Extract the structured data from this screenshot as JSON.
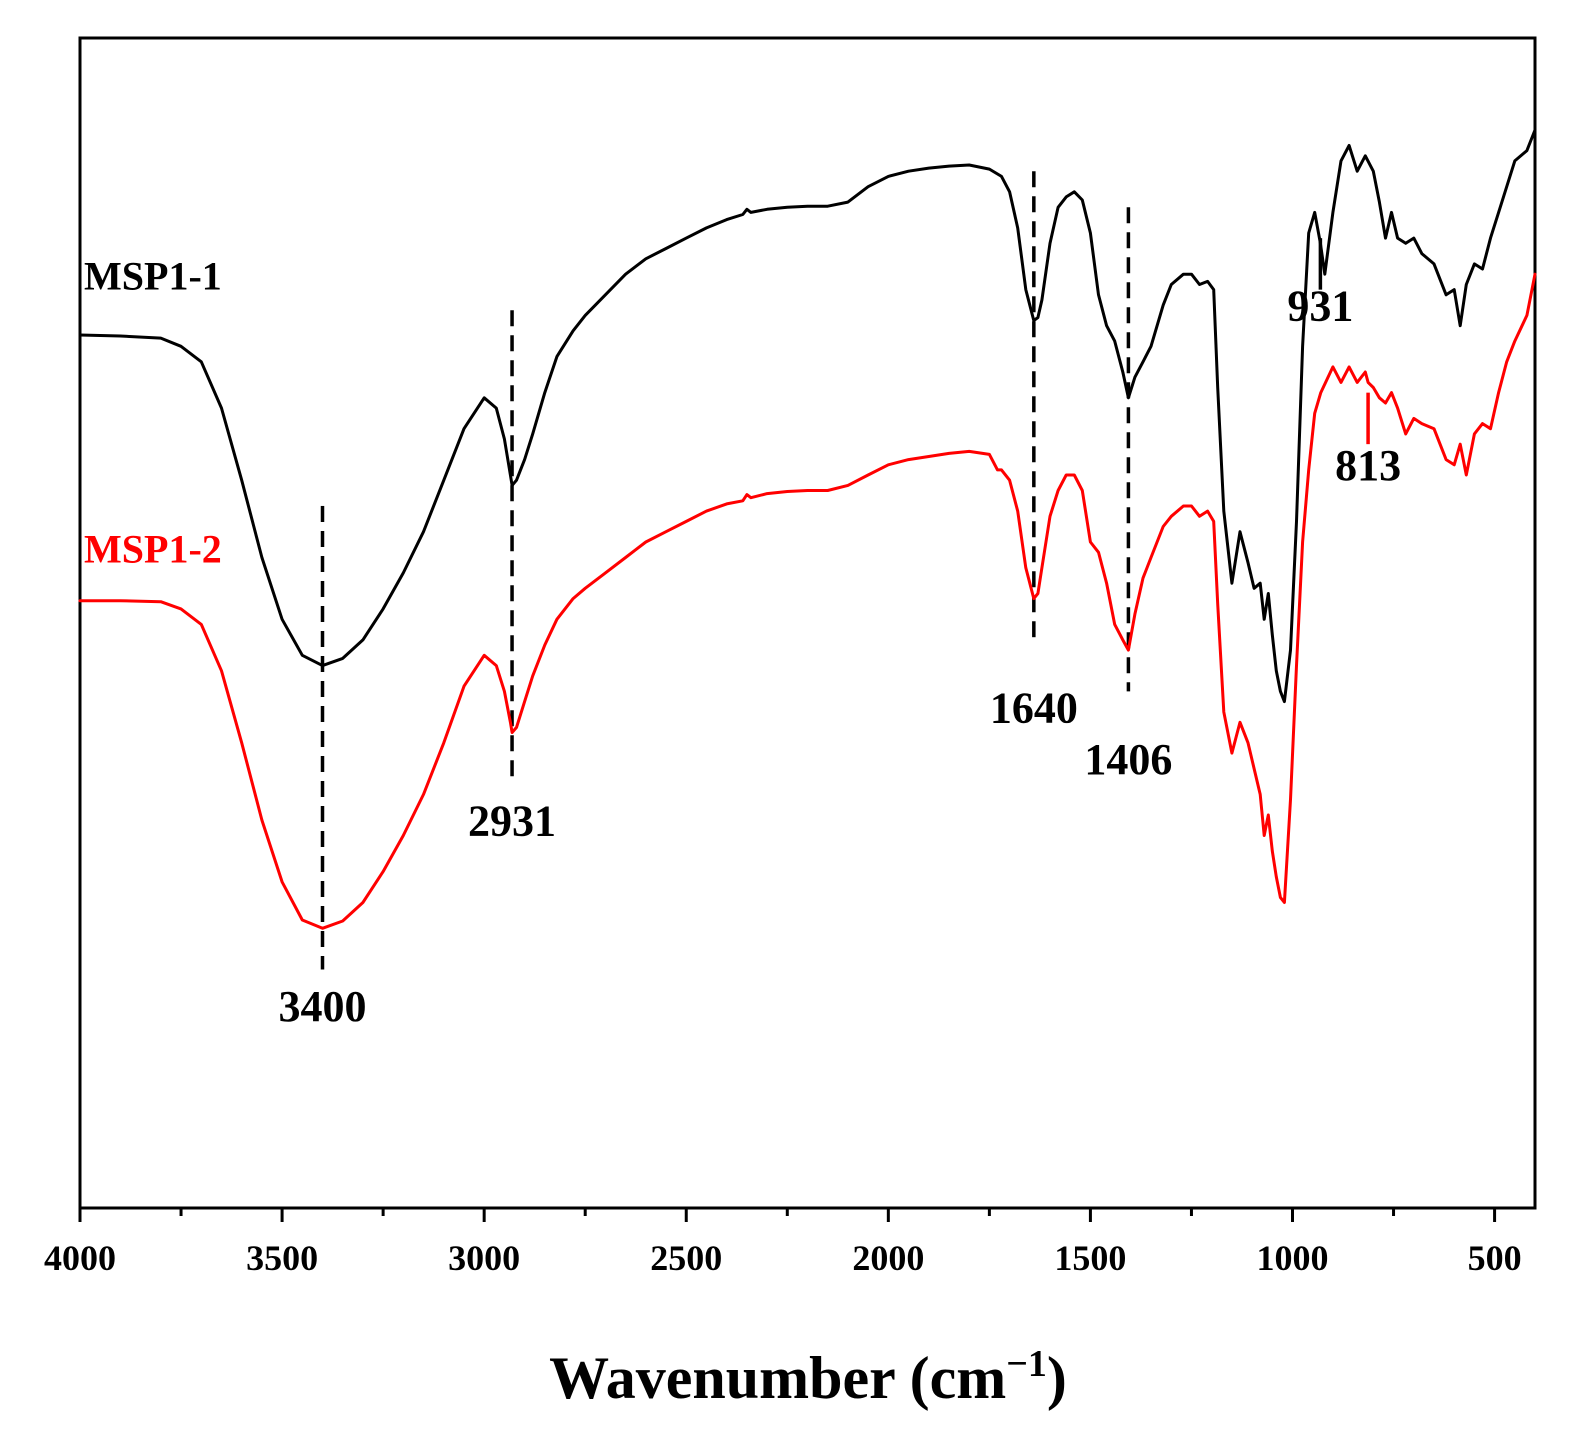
{
  "chart_data": {
    "type": "line",
    "title": "",
    "xlabel": "Wavenumber (cm",
    "xlabel_sup": "−1",
    "xlabel_close": ")",
    "ylabel": "",
    "xlim": [
      4000,
      400
    ],
    "ylim": [
      0,
      100
    ],
    "x_reversed": true,
    "grid": false,
    "x_ticks": [
      4000,
      3500,
      3000,
      2500,
      2000,
      1500,
      1000,
      500
    ],
    "x_tick_labels": [
      "4000",
      "3500",
      "3000",
      "2500",
      "2000",
      "1500",
      "1000",
      "500"
    ],
    "x_minor_ticks": [
      3750,
      3250,
      2750,
      2250,
      1750,
      1250,
      750
    ],
    "series": [
      {
        "name": "MSP1-1",
        "color": "#000000",
        "x": [
          4000,
          3900,
          3800,
          3750,
          3700,
          3650,
          3600,
          3550,
          3500,
          3450,
          3400,
          3350,
          3300,
          3250,
          3200,
          3150,
          3100,
          3050,
          3000,
          2970,
          2950,
          2935,
          2931,
          2920,
          2900,
          2880,
          2850,
          2820,
          2780,
          2750,
          2700,
          2650,
          2600,
          2550,
          2500,
          2450,
          2400,
          2360,
          2350,
          2340,
          2300,
          2250,
          2200,
          2150,
          2100,
          2050,
          2000,
          1950,
          1900,
          1850,
          1800,
          1750,
          1720,
          1700,
          1680,
          1660,
          1640,
          1630,
          1620,
          1600,
          1580,
          1560,
          1540,
          1520,
          1500,
          1480,
          1460,
          1440,
          1420,
          1406,
          1390,
          1370,
          1350,
          1320,
          1300,
          1270,
          1250,
          1230,
          1210,
          1195,
          1185,
          1170,
          1150,
          1130,
          1110,
          1095,
          1080,
          1070,
          1060,
          1050,
          1040,
          1030,
          1020,
          1005,
          990,
          975,
          960,
          945,
          931,
          920,
          900,
          880,
          860,
          840,
          820,
          800,
          785,
          770,
          755,
          740,
          720,
          700,
          680,
          650,
          620,
          600,
          585,
          570,
          550,
          530,
          510,
          490,
          470,
          450,
          420,
          400
        ],
        "values": [
          80.1,
          80.0,
          79.8,
          79.0,
          77.5,
          73.0,
          66.0,
          58.5,
          52.5,
          49.0,
          48.0,
          48.7,
          50.5,
          53.5,
          57.0,
          61.0,
          66.0,
          71.0,
          74.0,
          73.0,
          70.0,
          66.5,
          65.5,
          66.0,
          68.0,
          70.5,
          74.5,
          78.0,
          80.5,
          82.0,
          84.0,
          86.0,
          87.5,
          88.5,
          89.5,
          90.5,
          91.3,
          91.8,
          92.3,
          92.0,
          92.3,
          92.5,
          92.6,
          92.6,
          93.0,
          94.5,
          95.5,
          96.0,
          96.3,
          96.5,
          96.6,
          96.2,
          95.5,
          94.0,
          90.5,
          84.5,
          81.5,
          81.8,
          83.5,
          89.0,
          92.5,
          93.5,
          94.0,
          93.2,
          90.0,
          84.0,
          81.0,
          79.5,
          76.5,
          74.0,
          76.0,
          77.5,
          79.0,
          83.0,
          85.0,
          86.0,
          86.0,
          85.0,
          85.3,
          84.5,
          75.0,
          63.0,
          56.0,
          61.0,
          58.0,
          55.5,
          56.0,
          52.5,
          55.0,
          51.0,
          47.5,
          45.5,
          44.5,
          49.5,
          62.0,
          79.0,
          90.0,
          92.0,
          89.0,
          86.0,
          92.0,
          97.0,
          98.5,
          96.0,
          97.5,
          96.0,
          93.0,
          89.5,
          92.0,
          89.5,
          89.0,
          89.5,
          88.0,
          87.0,
          84.0,
          84.5,
          81.0,
          85.0,
          87.0,
          86.5,
          89.5,
          92.0,
          94.5,
          97.0,
          98.0,
          100.0
        ]
      },
      {
        "name": "MSP1-2",
        "color": "#ff0000",
        "x": [
          4000,
          3900,
          3800,
          3750,
          3700,
          3650,
          3600,
          3550,
          3500,
          3450,
          3400,
          3350,
          3300,
          3250,
          3200,
          3150,
          3100,
          3050,
          3000,
          2970,
          2950,
          2935,
          2931,
          2920,
          2900,
          2880,
          2850,
          2820,
          2780,
          2750,
          2700,
          2650,
          2600,
          2550,
          2500,
          2450,
          2400,
          2360,
          2350,
          2340,
          2300,
          2250,
          2200,
          2150,
          2100,
          2050,
          2000,
          1950,
          1900,
          1850,
          1800,
          1750,
          1730,
          1720,
          1700,
          1680,
          1660,
          1640,
          1630,
          1620,
          1600,
          1580,
          1560,
          1540,
          1520,
          1500,
          1480,
          1460,
          1440,
          1420,
          1406,
          1390,
          1370,
          1350,
          1320,
          1300,
          1270,
          1250,
          1230,
          1210,
          1195,
          1185,
          1170,
          1150,
          1130,
          1110,
          1095,
          1080,
          1070,
          1060,
          1050,
          1040,
          1030,
          1020,
          1005,
          990,
          975,
          960,
          945,
          930,
          900,
          880,
          860,
          840,
          820,
          813,
          800,
          785,
          770,
          755,
          740,
          720,
          700,
          680,
          650,
          620,
          600,
          585,
          570,
          550,
          530,
          510,
          490,
          470,
          450,
          420,
          400
        ],
        "values": [
          54.3,
          54.3,
          54.2,
          53.5,
          52.0,
          47.5,
          40.5,
          33.0,
          27.0,
          23.3,
          22.5,
          23.2,
          25.0,
          28.0,
          31.5,
          35.5,
          40.5,
          46.0,
          49.0,
          48.0,
          45.5,
          42.5,
          41.5,
          42.0,
          44.5,
          47.0,
          50.0,
          52.5,
          54.5,
          55.5,
          57.0,
          58.5,
          60.0,
          61.0,
          62.0,
          63.0,
          63.7,
          64.0,
          64.6,
          64.3,
          64.7,
          64.9,
          65.0,
          65.0,
          65.5,
          66.5,
          67.5,
          68.0,
          68.3,
          68.6,
          68.8,
          68.5,
          67.0,
          67.0,
          66.0,
          63.0,
          57.5,
          54.5,
          55.0,
          57.5,
          62.5,
          65.0,
          66.5,
          66.5,
          65.0,
          60.0,
          59.0,
          56.0,
          52.0,
          50.5,
          49.5,
          53.0,
          56.5,
          58.5,
          61.5,
          62.5,
          63.5,
          63.5,
          62.5,
          63.0,
          62.0,
          54.0,
          43.5,
          39.5,
          42.5,
          40.5,
          38.0,
          35.5,
          31.5,
          33.5,
          30.0,
          27.5,
          25.5,
          25.0,
          35.0,
          48.0,
          60.0,
          67.0,
          72.5,
          74.5,
          77.0,
          75.5,
          77.0,
          75.5,
          76.5,
          75.5,
          75.0,
          74.0,
          73.5,
          74.5,
          73.0,
          70.5,
          72.0,
          71.5,
          71.0,
          68.0,
          67.5,
          69.5,
          66.5,
          70.5,
          71.5,
          71.0,
          74.5,
          77.5,
          79.5,
          82.0,
          86.0
        ]
      }
    ],
    "peak_markers": [
      {
        "label": "3400",
        "x": 3400,
        "style": "dashed",
        "color": "#000000",
        "y_top": 63.5,
        "y_bottom": 18.5,
        "label_y": 13.5
      },
      {
        "label": "2931",
        "x": 2931,
        "style": "dashed",
        "color": "#000000",
        "y_top": 82.5,
        "y_bottom": 36.5,
        "label_y": 31.5
      },
      {
        "label": "1640",
        "x": 1640,
        "style": "dashed",
        "color": "#000000",
        "y_top": 96.0,
        "y_bottom": 50.5,
        "label_y": 42.5
      },
      {
        "label": "1406",
        "x": 1406,
        "style": "dashed",
        "color": "#000000",
        "y_top": 92.5,
        "y_bottom": 45.5,
        "label_y": 37.5
      },
      {
        "label": "931",
        "x": 931,
        "style": "solid",
        "color": "#000000",
        "y_top": 89.5,
        "y_bottom": 84.5,
        "label_y": 81.5
      },
      {
        "label": "813",
        "x": 813,
        "style": "solid",
        "color": "#ff0000",
        "y_top": 74.5,
        "y_bottom": 69.5,
        "label_y": 66.0
      }
    ],
    "series_labels": [
      {
        "text": "MSP1-1",
        "color": "#000000",
        "x": 3990,
        "y": 84.5
      },
      {
        "text": "MSP1-2",
        "color": "#ff0000",
        "x": 3990,
        "y": 58.0
      }
    ]
  }
}
